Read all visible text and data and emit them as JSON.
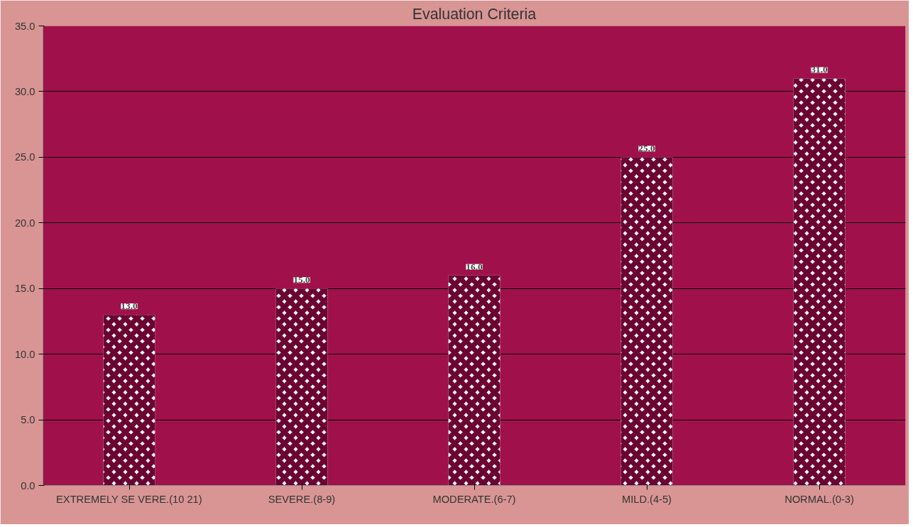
{
  "chart_data": {
    "type": "bar",
    "title": "Evaluation Criteria",
    "categories": [
      "EXTREMELY SE VERE.(10 21)",
      "SEVERE.(8-9)",
      "MODERATE.(6-7)",
      "MILD.(4-5)",
      "NORMAL.(0-3)"
    ],
    "values": [
      13,
      15,
      16,
      25,
      31
    ],
    "value_labels": [
      "13.0",
      "15.0",
      "16.0",
      "25.0",
      "31.0"
    ],
    "color": "#ffffff",
    "ylim": [
      0,
      35
    ],
    "yticks": [
      {
        "value": 0,
        "label": "0.0"
      },
      {
        "value": 5,
        "label": "5.0"
      },
      {
        "value": 10,
        "label": "10.0"
      },
      {
        "value": 15,
        "label": "15.0"
      },
      {
        "value": 20,
        "label": "20.0"
      },
      {
        "value": 25,
        "label": "25.0"
      },
      {
        "value": 30,
        "label": "30.0"
      },
      {
        "value": 35,
        "label": "35.0"
      }
    ],
    "grid": "y"
  }
}
